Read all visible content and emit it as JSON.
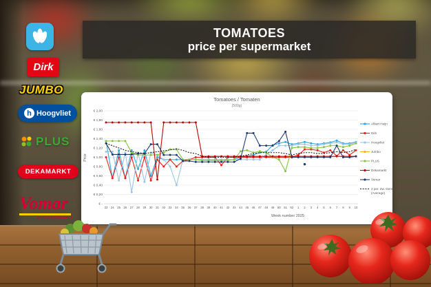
{
  "banner": {
    "line1": "TOMATOES",
    "line2": "price per supermarket"
  },
  "logos": [
    {
      "label": "ah",
      "name": "Albert Heijn"
    },
    {
      "label": "Dirk",
      "name": "Dirk"
    },
    {
      "label": "JUMBO",
      "name": "Jumbo"
    },
    {
      "label": "Hoogvliet",
      "name": "Hoogvliet"
    },
    {
      "label": "PLUS",
      "name": "PLUS"
    },
    {
      "label": "DEKAMARKT",
      "name": "DekaMarkt"
    },
    {
      "label": "Vomar",
      "sub": "Voordeelmarkt",
      "name": "Vomar"
    }
  ],
  "chart": {
    "title": "Tomatoes / Tomaten",
    "subtitle": "(500g)",
    "y_axis_label": "Price",
    "x_axis_label": "Week number 2025",
    "y_ticks": [
      "€ 2,00",
      "€ 1,80",
      "€ 1,60",
      "€ 1,40",
      "€ 1,20",
      "€ 1,00",
      "€ 0,80",
      "€ 0,60",
      "€ 0,40",
      "€ 0,20",
      "€ -"
    ]
  },
  "chart_data": {
    "type": "line",
    "title": "Tomatoes / Tomaten (500g)",
    "xlabel": "Week number 2025",
    "ylabel": "Price",
    "ylim": [
      0,
      2.0
    ],
    "grid": true,
    "legend_position": "right",
    "x": [
      23,
      24,
      25,
      26,
      27,
      28,
      29,
      30,
      31,
      32,
      33,
      34,
      35,
      36,
      37,
      38,
      39,
      40,
      41,
      42,
      43,
      44,
      45,
      46,
      47,
      48,
      49,
      50,
      51,
      52,
      1,
      2,
      3,
      4,
      5,
      6,
      7,
      8,
      9,
      10
    ],
    "series": [
      {
        "name": "Albert Heijn",
        "color": "#2AA7DE",
        "values": [
          1.35,
          0.55,
          1.15,
          0.55,
          1.15,
          0.75,
          1.15,
          0.6,
          1.0,
          0.95,
          0.95,
          0.95,
          0.95,
          0.95,
          0.95,
          0.95,
          0.95,
          0.95,
          0.95,
          0.95,
          0.95,
          1.0,
          1.02,
          1.05,
          1.1,
          1.12,
          1.26,
          1.3,
          1.33,
          1.28,
          1.3,
          1.33,
          1.3,
          1.28,
          1.3,
          1.32,
          1.36,
          1.3,
          1.3,
          1.33
        ]
      },
      {
        "name": "Dirk",
        "color": "#E8201A",
        "values": [
          1.0,
          0.55,
          1.0,
          0.55,
          1.0,
          0.5,
          1.0,
          0.5,
          0.95,
          0.8,
          0.95,
          0.8,
          0.92,
          0.95,
          1.0,
          1.0,
          1.0,
          1.0,
          0.83,
          1.0,
          1.0,
          1.0,
          1.0,
          1.0,
          1.0,
          1.0,
          1.0,
          1.0,
          1.0,
          1.0,
          1.05,
          1.17,
          1.17,
          1.15,
          1.1,
          1.15,
          1.03,
          1.15,
          1.05,
          1.15
        ]
      },
      {
        "name": "Hoogvliet",
        "color": "#9DC3E6",
        "values": [
          1.12,
          1.12,
          0.5,
          1.1,
          0.25,
          1.1,
          0.47,
          1.1,
          1.05,
          0.95,
          0.8,
          0.4,
          0.95,
          0.95,
          0.95,
          0.95,
          0.95,
          0.95,
          0.95,
          0.95,
          0.95,
          0.95,
          0.95,
          0.95,
          0.95,
          1.06,
          1.15,
          1.25,
          1.25,
          1.25,
          1.28,
          1.28,
          1.25,
          1.25,
          1.28,
          1.3,
          1.32,
          1.28,
          1.28,
          1.32
        ]
      },
      {
        "name": "Jumbo",
        "color": "#F2B705",
        "values": [
          null,
          null,
          null,
          null,
          null,
          null,
          null,
          null,
          null,
          null,
          null,
          null,
          null,
          null,
          null,
          null,
          null,
          null,
          null,
          null,
          null,
          null,
          null,
          null,
          null,
          null,
          null,
          null,
          null,
          null,
          null,
          null,
          null,
          null,
          null,
          null,
          null,
          null,
          null,
          null
        ]
      },
      {
        "name": "PLUS",
        "color": "#86C440",
        "values": [
          1.35,
          1.35,
          1.35,
          1.35,
          1.1,
          1.05,
          1.05,
          1.05,
          1.05,
          1.1,
          1.17,
          1.17,
          0.95,
          0.95,
          0.95,
          0.93,
          0.93,
          0.93,
          0.93,
          0.93,
          0.95,
          1.13,
          1.15,
          1.1,
          1.13,
          1.1,
          1.0,
          0.95,
          0.7,
          1.2,
          1.22,
          1.22,
          1.2,
          1.2,
          1.22,
          1.25,
          1.25,
          1.22,
          1.25,
          1.3
        ]
      },
      {
        "name": "Dekamarkt",
        "color": "#C00000",
        "values": [
          1.75,
          1.75,
          1.75,
          1.75,
          1.75,
          1.75,
          1.75,
          1.75,
          0.52,
          1.75,
          1.75,
          1.75,
          1.75,
          1.75,
          1.75,
          1.02,
          1.02,
          1.02,
          1.02,
          1.02,
          1.02,
          1.02,
          1.02,
          1.02,
          1.02,
          1.02,
          1.02,
          1.02,
          1.02,
          1.02,
          1.02,
          1.02,
          1.02,
          1.02,
          1.02,
          1.02,
          1.02,
          1.02,
          1.02,
          1.02
        ]
      },
      {
        "name": "Vomar",
        "color": "#1F3B6E",
        "values": [
          1.3,
          1.06,
          1.06,
          1.06,
          1.06,
          1.08,
          1.08,
          1.28,
          1.28,
          1.05,
          1.05,
          1.05,
          0.92,
          0.92,
          0.9,
          0.9,
          0.9,
          0.9,
          0.9,
          0.9,
          0.9,
          0.97,
          1.52,
          1.52,
          1.25,
          1.25,
          1.25,
          1.35,
          1.55,
          1.0,
          1.0,
          1.0,
          1.0,
          1.0,
          1.0,
          1.0,
          1.25,
          1.0,
          1.0,
          1.02
        ]
      },
      {
        "name": "2 per. Zw. Gem. (Average)",
        "color": "#1A1A1A",
        "dashed": true,
        "legend_lines": [
          "2 per. Zw. Gem.",
          "(Average)"
        ],
        "values": [
          1.3,
          1.25,
          1.2,
          1.15,
          1.12,
          1.1,
          1.08,
          1.1,
          1.12,
          1.14,
          1.16,
          1.18,
          1.15,
          1.1,
          1.08,
          1.02,
          1.0,
          1.0,
          1.0,
          1.0,
          1.0,
          1.02,
          1.05,
          1.08,
          1.1,
          1.1,
          1.1,
          1.1,
          1.08,
          1.05,
          1.08,
          1.1,
          1.1,
          1.08,
          1.08,
          1.1,
          1.12,
          1.1,
          1.12,
          1.17
        ]
      }
    ],
    "outliers": [
      {
        "series": "Vomar",
        "week": 2,
        "value": 0.85
      }
    ]
  }
}
